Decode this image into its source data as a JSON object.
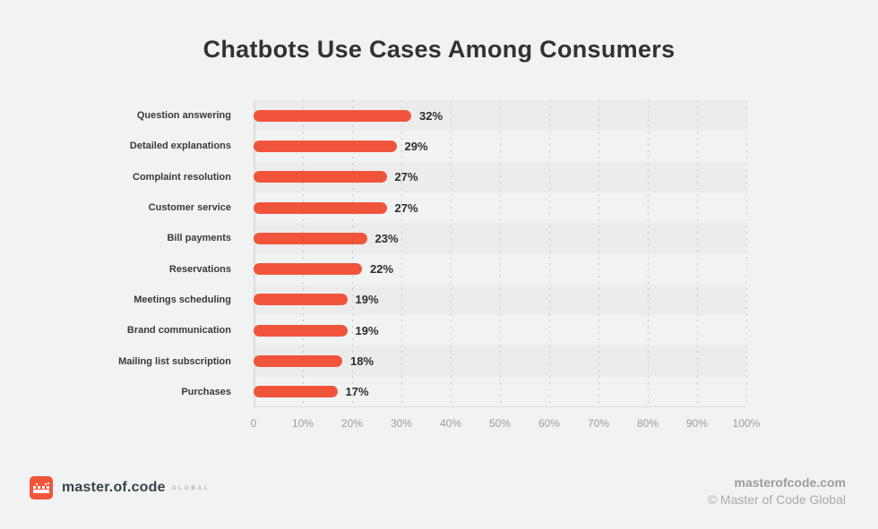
{
  "title": "Chatbots Use Cases Among Consumers",
  "chart_data": {
    "type": "bar",
    "orientation": "horizontal",
    "title": "Chatbots Use Cases Among Consumers",
    "categories": [
      "Question answering",
      "Detailed explanations",
      "Complaint resolution",
      "Customer service",
      "Bill payments",
      "Reservations",
      "Meetings scheduling",
      "Brand communication",
      "Mailing list subscription",
      "Purchases"
    ],
    "values": [
      32,
      29,
      27,
      27,
      23,
      22,
      19,
      19,
      18,
      17
    ],
    "value_labels": [
      "32%",
      "29%",
      "27%",
      "27%",
      "23%",
      "22%",
      "19%",
      "19%",
      "18%",
      "17%"
    ],
    "xlabel": "",
    "ylabel": "",
    "xlim": [
      0,
      100
    ],
    "x_ticks": [
      "0",
      "10%",
      "20%",
      "30%",
      "40%",
      "50%",
      "60%",
      "70%",
      "80%",
      "90%",
      "100%"
    ],
    "grid": "dashed-vertical",
    "legend": "none",
    "bar_color": "#F0553C"
  },
  "footer": {
    "logo_text": "master.of.code",
    "logo_suffix": "GLOBAL",
    "website": "masterofcode.com",
    "copyright": "© Master of Code Global"
  },
  "colors": {
    "background": "#F1F2F2",
    "bar": "#F0553C",
    "stripe_dark": "#ECECEC",
    "axis": "#DEDEDE",
    "gridline": "#C6C6C6",
    "title_text": "#323232",
    "tick_text": "#9C9C9C",
    "logo_red": "#F0553C"
  }
}
